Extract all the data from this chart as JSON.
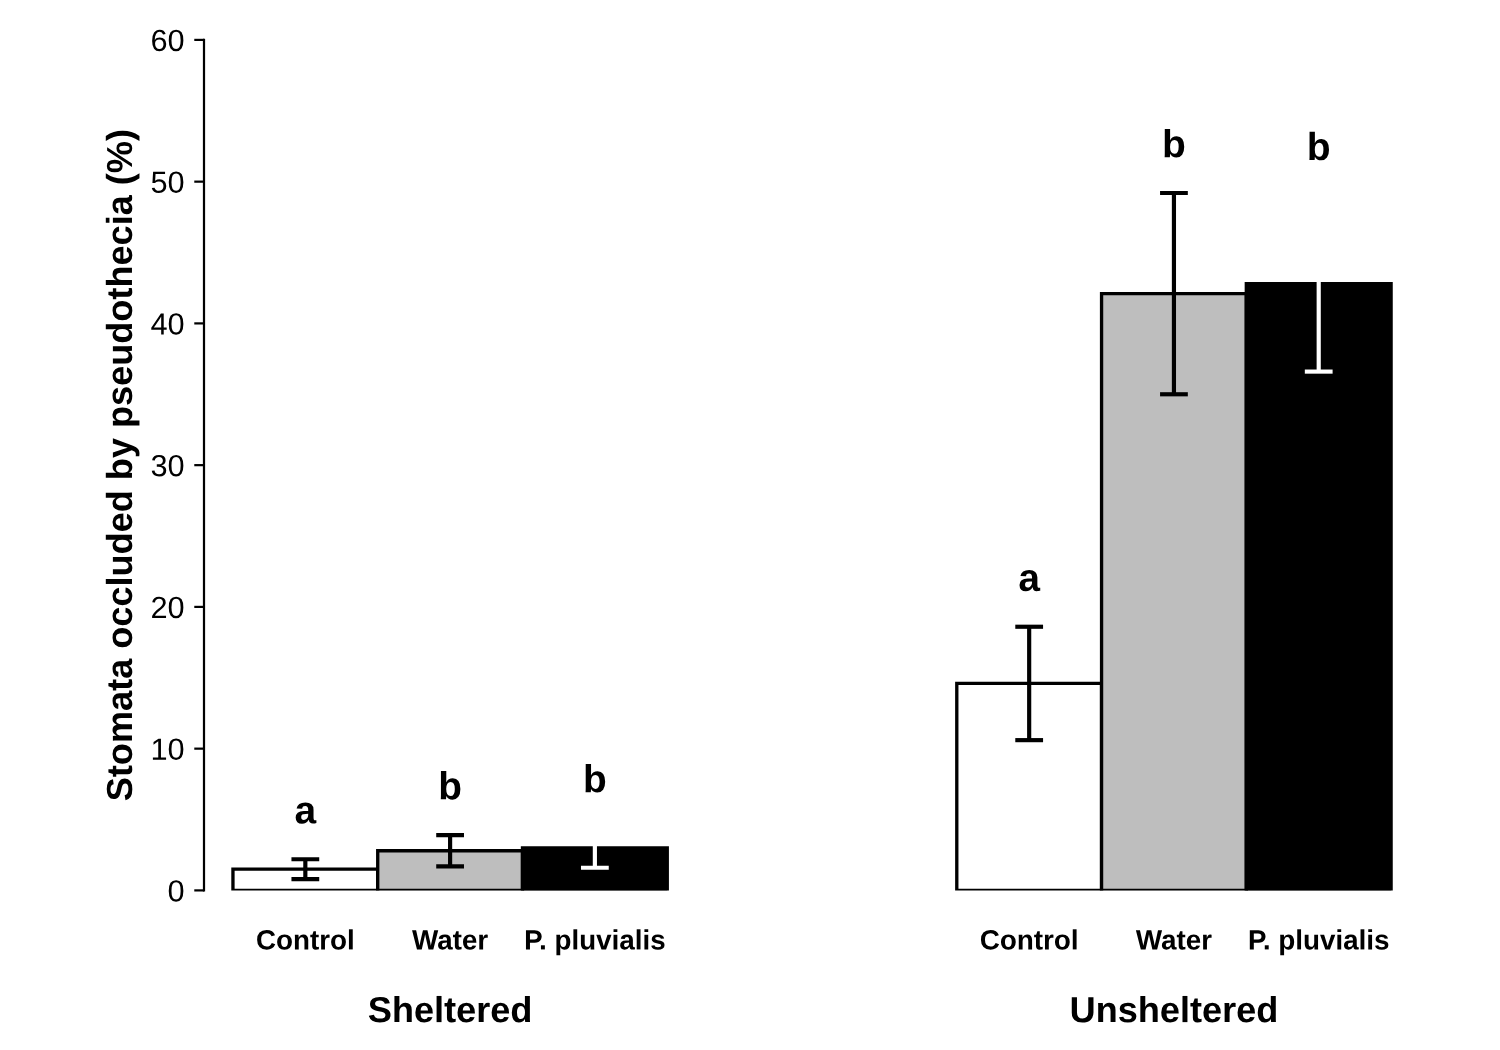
{
  "chart_data": {
    "type": "bar",
    "ylabel": "Stomata occluded by pseudothecia (%)",
    "categories": [
      "Sheltered",
      "Unsheltered"
    ],
    "series": [
      {
        "name": "Control",
        "color": "#ffffff",
        "values": [
          1.5,
          14.6
        ],
        "errors": [
          0.7,
          4.0
        ]
      },
      {
        "name": "Water",
        "color": "#bebebe",
        "values": [
          2.8,
          42.1
        ],
        "errors": [
          1.1,
          7.1
        ]
      },
      {
        "name": "P. pluvialis",
        "color": "#000000",
        "values": [
          3.0,
          42.8
        ],
        "errors": [
          1.4,
          6.2
        ]
      }
    ],
    "ylim": [
      0,
      60
    ],
    "yticks": [
      0,
      10,
      20,
      30,
      40,
      50,
      60
    ],
    "grid": false,
    "legend": false,
    "annotations": [
      "a",
      "b",
      "b",
      "a",
      "b",
      "b"
    ]
  }
}
